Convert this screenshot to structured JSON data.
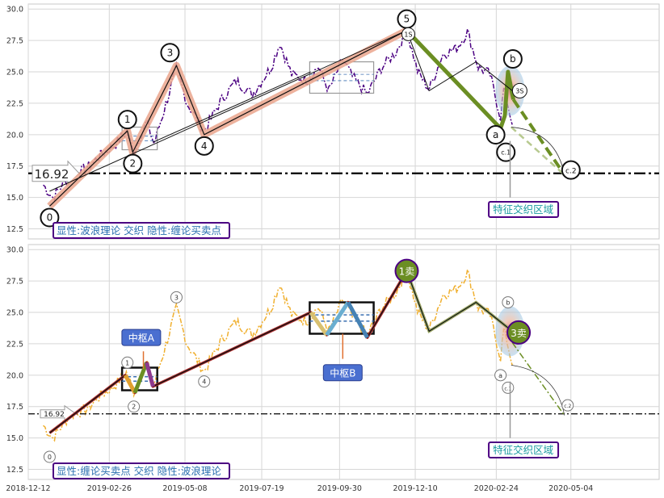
{
  "chart_data": [
    {
      "type": "line",
      "panel": "top",
      "title": "",
      "xlabel": "",
      "ylabel": "",
      "ylim": [
        11.7,
        30.4
      ],
      "yticks": [
        "12.5",
        "15.0",
        "17.5",
        "20.0",
        "22.5",
        "25.0",
        "27.5",
        "30.0"
      ],
      "grid": true,
      "reference_line": {
        "value": 16.92,
        "label": "16.92"
      },
      "text_box": "显性:波浪理论 交织 隐性:缠论买卖点",
      "region_label": "特征交织区域",
      "wave_path": [
        {
          "date": "2019-01-01",
          "value": 14.3,
          "label": "0"
        },
        {
          "date": "2019-03-15",
          "value": 20.3,
          "label": "1"
        },
        {
          "date": "2019-03-20",
          "value": 18.6,
          "label": "2"
        },
        {
          "date": "2019-04-30",
          "value": 25.5,
          "label": "3"
        },
        {
          "date": "2019-05-26",
          "value": 20.0,
          "label": "4"
        },
        {
          "date": "2019-12-02",
          "value": 28.3,
          "label": "5"
        },
        {
          "date": "2020-02-28",
          "value": 20.5,
          "label": "a"
        },
        {
          "date": "2020-03-06",
          "value": 25.0,
          "label": "b"
        },
        {
          "date": "2020-04-28",
          "value": 16.8,
          "label": "c.2"
        }
      ],
      "extra_labels": [
        "c.1",
        "3S",
        "1S"
      ],
      "boxes": [
        {
          "x": [
            "2019-03-10",
            "2019-04-12"
          ],
          "y": [
            18.8,
            20.6
          ]
        },
        {
          "x": [
            "2019-09-02",
            "2019-11-01"
          ],
          "y": [
            23.3,
            25.8
          ]
        }
      ]
    },
    {
      "type": "line",
      "panel": "bottom",
      "title": "",
      "xlabel": "",
      "ylabel": "",
      "ylim": [
        11.7,
        30.4
      ],
      "yticks": [
        "12.5",
        "15.0",
        "17.5",
        "20.0",
        "22.5",
        "25.0",
        "27.5",
        "30.0"
      ],
      "xticks": [
        "2018-12-12",
        "2019-02-26",
        "2019-05-08",
        "2019-07-19",
        "2019-09-30",
        "2019-12-10",
        "2020-02-24",
        "2020-05-04"
      ],
      "grid": true,
      "reference_line": {
        "value": 16.92,
        "label": "16.92"
      },
      "text_box": "显性:缠论买卖点 交织 隐性:波浪理论",
      "region_label": "特征交织区域",
      "zhongshu_labels": [
        "中枢A",
        "中枢B"
      ],
      "signal_labels": [
        "1卖",
        "3卖"
      ],
      "wave_labels": [
        "0",
        "1",
        "2",
        "3",
        "4",
        "a",
        "c.1",
        "b",
        "c.2"
      ],
      "boxes": [
        {
          "x": [
            "2019-03-10",
            "2019-04-12"
          ],
          "y": [
            18.8,
            20.6
          ],
          "label": "中枢A"
        },
        {
          "x": [
            "2019-09-02",
            "2019-11-01"
          ],
          "y": [
            23.3,
            25.8
          ],
          "label": "中枢B"
        }
      ],
      "bi_path": [
        {
          "date": "2019-01-01",
          "value": 15.4
        },
        {
          "date": "2019-03-13",
          "value": 20.0
        },
        {
          "date": "2019-03-22",
          "value": 18.6
        },
        {
          "date": "2019-04-02",
          "value": 21.0
        },
        {
          "date": "2019-04-08",
          "value": 19.1
        },
        {
          "date": "2019-09-03",
          "value": 25.0
        },
        {
          "date": "2019-09-18",
          "value": 23.2
        },
        {
          "date": "2019-10-08",
          "value": 25.8
        },
        {
          "date": "2019-10-26",
          "value": 23.0
        },
        {
          "date": "2019-12-02",
          "value": 28.3
        },
        {
          "date": "2019-12-23",
          "value": 23.5
        },
        {
          "date": "2020-02-05",
          "value": 25.8
        },
        {
          "date": "2020-03-13",
          "value": 23.3
        }
      ]
    }
  ]
}
